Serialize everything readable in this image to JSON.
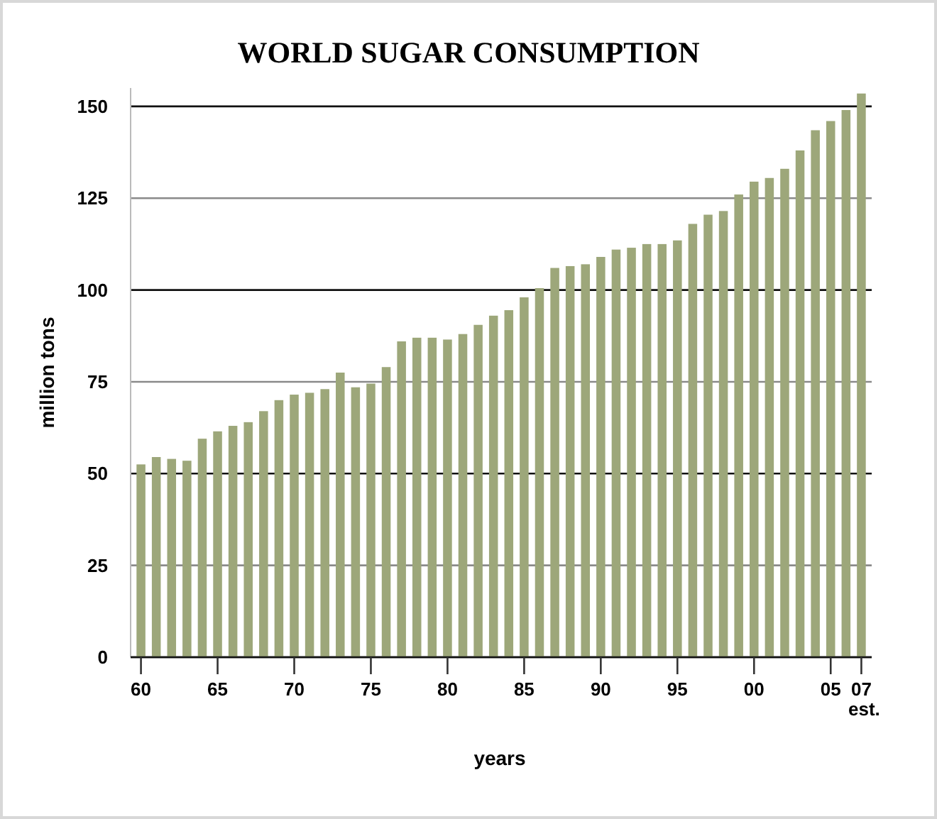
{
  "chart_data": {
    "type": "bar",
    "title": "WORLD SUGAR CONSUMPTION",
    "xlabel": "years",
    "ylabel": "million tons",
    "categories": [
      "60",
      null,
      null,
      null,
      null,
      "65",
      null,
      null,
      null,
      null,
      "70",
      null,
      null,
      null,
      null,
      "75",
      null,
      null,
      null,
      null,
      "80",
      null,
      null,
      null,
      null,
      "85",
      null,
      null,
      null,
      null,
      "90",
      null,
      null,
      null,
      null,
      "95",
      null,
      null,
      null,
      null,
      "00",
      null,
      null,
      null,
      null,
      "05",
      null,
      "07\nest."
    ],
    "values": [
      52.5,
      54.5,
      54,
      53.5,
      59.5,
      61.5,
      63,
      64,
      67,
      70,
      71.5,
      72,
      73,
      77.5,
      73.5,
      74.5,
      79,
      86,
      87,
      87,
      86.5,
      88,
      90.5,
      93,
      94.5,
      98,
      100.5,
      106,
      106.5,
      107,
      109,
      111,
      111.5,
      112.5,
      112.5,
      113.5,
      118,
      120.5,
      121.5,
      126,
      129.5,
      130.5,
      133,
      138,
      143.5,
      146,
      149,
      153.5
    ],
    "color": "#9da77a",
    "ylim": [
      0,
      155
    ],
    "yticks": [
      0,
      25,
      50,
      75,
      100,
      125,
      150
    ],
    "grid": "y"
  }
}
